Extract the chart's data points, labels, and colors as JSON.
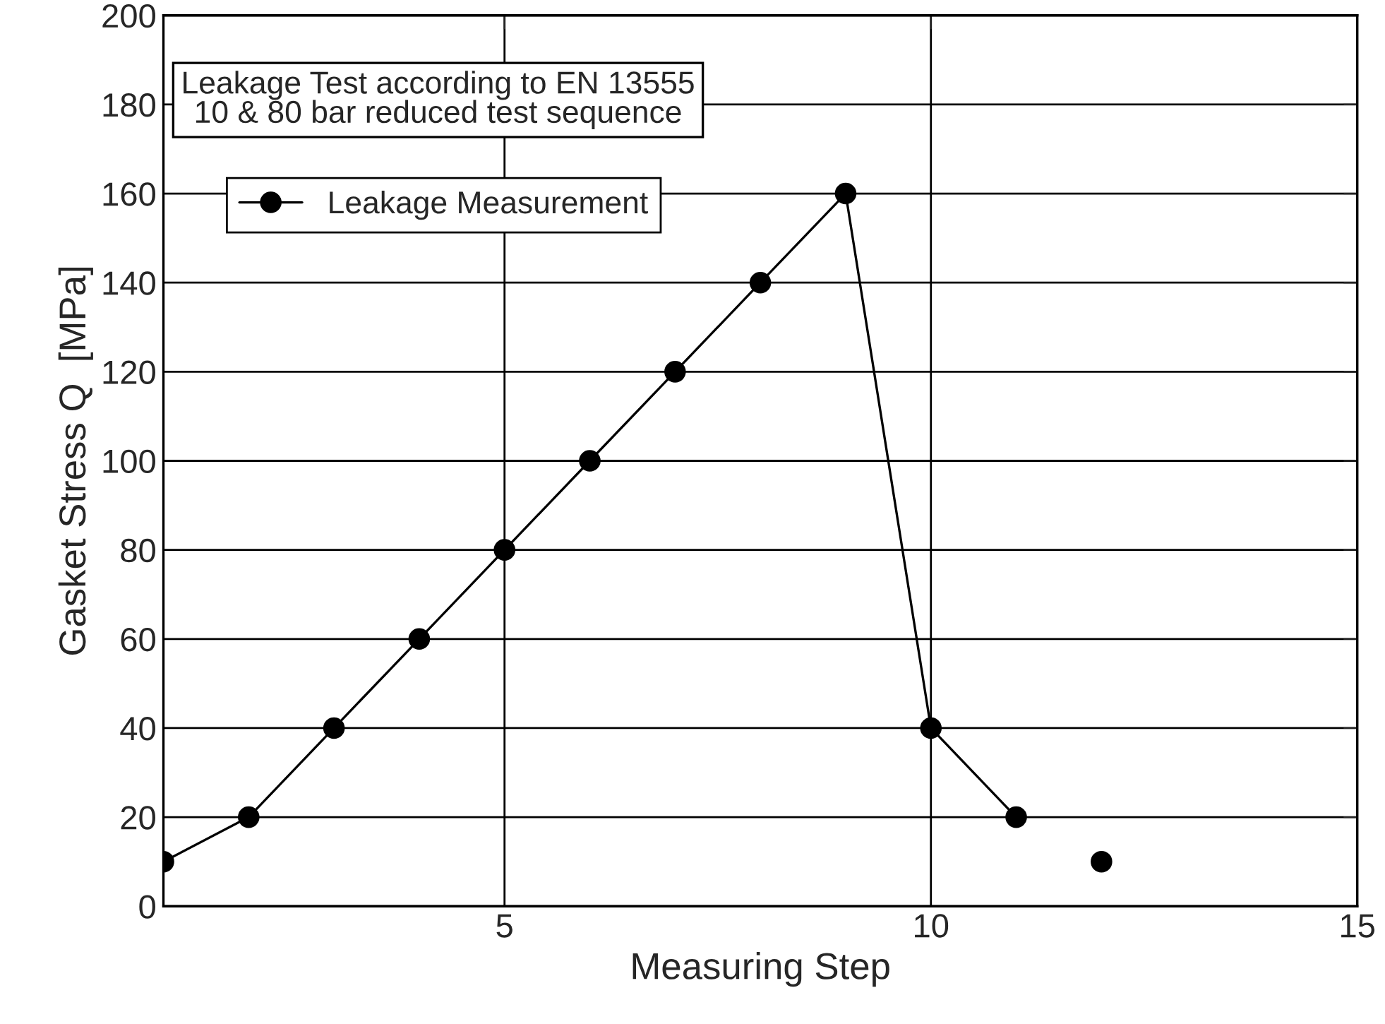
{
  "chart_data": {
    "type": "line",
    "xlabel": "Measuring Step",
    "ylabel": "Gasket Stress Q  [MPa]",
    "annotations": [
      "Leakage Test according to EN 13555\n10 & 80 bar reduced test sequence"
    ],
    "series": [
      {
        "name": "Leakage Measurement",
        "color": "#000000",
        "x": [
          1,
          2,
          3,
          4,
          5,
          6,
          7,
          8,
          9,
          10,
          11
        ],
        "values": [
          10,
          20,
          40,
          60,
          80,
          100,
          120,
          140,
          160,
          40,
          20
        ]
      },
      {
        "type": "scatter",
        "color": "#000000",
        "x": [
          12
        ],
        "values": [
          10
        ]
      }
    ],
    "xlim": [
      1,
      15
    ],
    "xticks": [
      5,
      10,
      15
    ],
    "ylim": [
      0,
      200
    ],
    "yticks": [
      0,
      20,
      40,
      60,
      80,
      100,
      120,
      140,
      160,
      180,
      200
    ],
    "grid": true,
    "legend": "top left",
    "marker": "circle",
    "line_style": "solid"
  }
}
